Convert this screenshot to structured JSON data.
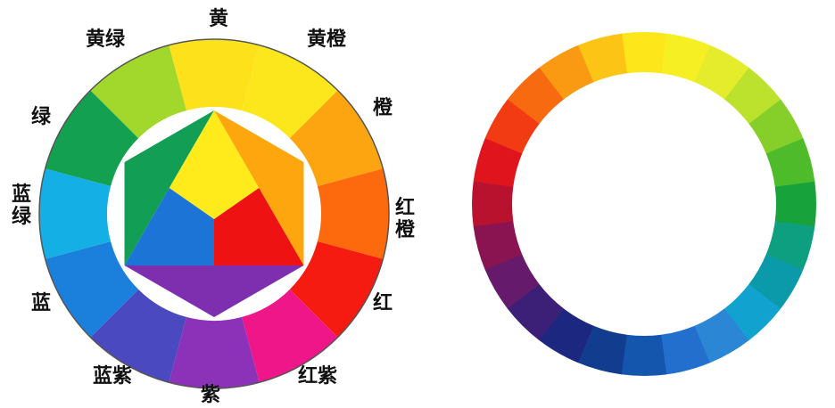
{
  "color_wheel_12": {
    "labels": [
      "黄",
      "黄橙",
      "橙",
      "红橙",
      "红",
      "红紫",
      "紫",
      "蓝紫",
      "蓝",
      "蓝绿",
      "绿",
      "黄绿"
    ],
    "colors": [
      "#fde21b",
      "#fbe71c",
      "#fca511",
      "#fd6a0e",
      "#f61b10",
      "#ee1688",
      "#8c32b8",
      "#4a49c0",
      "#1b7fdc",
      "#14b0e5",
      "#13a050",
      "#a2d82b"
    ]
  },
  "center_figure": {
    "triangle_colors": {
      "yellow": "#ffeb1b",
      "red": "#ee1212",
      "blue": "#1c74d6"
    },
    "secondary_colors": {
      "orange": "#fda60e",
      "purple": "#7e2fb0",
      "green": "#129e55"
    }
  },
  "color_wheel_24": {
    "colors": [
      "#fde619",
      "#f6ef24",
      "#e4ec2c",
      "#bde22e",
      "#86cf2b",
      "#4dbb2a",
      "#17a23c",
      "#0d9f80",
      "#0b9aaa",
      "#12a2d0",
      "#2b86d6",
      "#226fce",
      "#1456ad",
      "#123c8e",
      "#1c2880",
      "#3c2077",
      "#661a6b",
      "#8a1452",
      "#b8122f",
      "#e0141d",
      "#f33b13",
      "#f76a10",
      "#fa9a12",
      "#fcc516"
    ]
  }
}
